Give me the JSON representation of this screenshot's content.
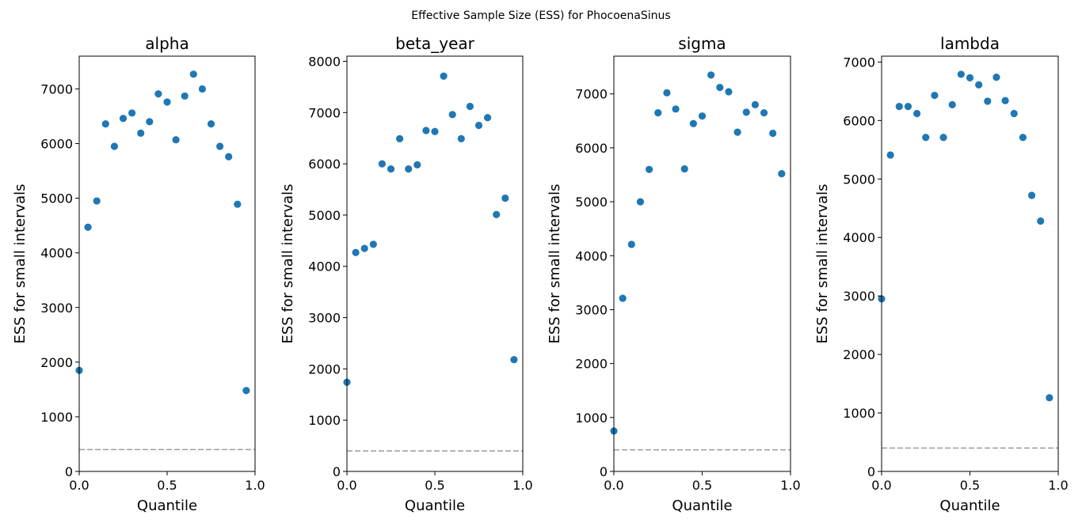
{
  "suptitle": "Effective Sample Size (ESS) for PhocoenaSinus",
  "chart_data": [
    {
      "type": "scatter",
      "title": "alpha",
      "xlabel": "Quantile",
      "ylabel": "ESS for small intervals",
      "xlim": [
        0,
        1
      ],
      "ylim": [
        0,
        7600
      ],
      "xticks": [
        "0.0",
        "0.5",
        "1.0"
      ],
      "yticks": [
        "0",
        "1000",
        "2000",
        "3000",
        "4000",
        "5000",
        "6000",
        "7000"
      ],
      "reference_line": 400,
      "color": "#1f77b4",
      "x": [
        0.0,
        0.05,
        0.1,
        0.15,
        0.2,
        0.25,
        0.3,
        0.35,
        0.4,
        0.45,
        0.5,
        0.55,
        0.6,
        0.65,
        0.7,
        0.75,
        0.8,
        0.85,
        0.9,
        0.95
      ],
      "y": [
        1850,
        4470,
        4950,
        6360,
        5950,
        6460,
        6560,
        6190,
        6400,
        6910,
        6760,
        6070,
        6870,
        7270,
        7000,
        6360,
        5950,
        5760,
        4890,
        1480
      ]
    },
    {
      "type": "scatter",
      "title": "beta_year",
      "xlabel": "Quantile",
      "ylabel": "ESS for small intervals",
      "xlim": [
        0,
        1
      ],
      "ylim": [
        0,
        8100
      ],
      "xticks": [
        "0.0",
        "0.5",
        "1.0"
      ],
      "yticks": [
        "0",
        "1000",
        "2000",
        "3000",
        "4000",
        "5000",
        "6000",
        "7000",
        "8000"
      ],
      "reference_line": 400,
      "color": "#1f77b4",
      "x": [
        0.0,
        0.05,
        0.1,
        0.15,
        0.2,
        0.25,
        0.3,
        0.35,
        0.4,
        0.45,
        0.5,
        0.55,
        0.6,
        0.65,
        0.7,
        0.75,
        0.8,
        0.85,
        0.9,
        0.95
      ],
      "y": [
        1740,
        4270,
        4350,
        4430,
        6000,
        5900,
        6490,
        5900,
        5980,
        6650,
        6630,
        7710,
        6960,
        6490,
        7120,
        6750,
        6900,
        5010,
        5330,
        2180
      ]
    },
    {
      "type": "scatter",
      "title": "sigma",
      "xlabel": "Quantile",
      "ylabel": "ESS for small intervals",
      "xlim": [
        0,
        1
      ],
      "ylim": [
        0,
        7700
      ],
      "xticks": [
        "0.0",
        "0.5",
        "1.0"
      ],
      "yticks": [
        "0",
        "1000",
        "2000",
        "3000",
        "4000",
        "5000",
        "6000",
        "7000"
      ],
      "reference_line": 400,
      "color": "#1f77b4",
      "x": [
        0.0,
        0.05,
        0.1,
        0.15,
        0.2,
        0.25,
        0.3,
        0.35,
        0.4,
        0.45,
        0.5,
        0.55,
        0.6,
        0.65,
        0.7,
        0.75,
        0.8,
        0.85,
        0.9,
        0.95
      ],
      "y": [
        750,
        3210,
        4210,
        5000,
        5600,
        6650,
        7020,
        6720,
        5610,
        6450,
        6590,
        7350,
        7120,
        7040,
        6290,
        6660,
        6800,
        6650,
        6270,
        5520
      ]
    },
    {
      "type": "scatter",
      "title": "lambda",
      "xlabel": "Quantile",
      "ylabel": "ESS for small intervals",
      "xlim": [
        0,
        1
      ],
      "ylim": [
        0,
        7100
      ],
      "xticks": [
        "0.0",
        "0.5",
        "1.0"
      ],
      "yticks": [
        "0",
        "1000",
        "2000",
        "3000",
        "4000",
        "5000",
        "6000",
        "7000"
      ],
      "reference_line": 400,
      "color": "#1f77b4",
      "x": [
        0.0,
        0.05,
        0.1,
        0.15,
        0.2,
        0.25,
        0.3,
        0.35,
        0.4,
        0.45,
        0.5,
        0.55,
        0.6,
        0.65,
        0.7,
        0.75,
        0.8,
        0.85,
        0.9,
        0.95
      ],
      "y": [
        2950,
        5410,
        6240,
        6240,
        6120,
        5710,
        6430,
        5710,
        6270,
        6790,
        6730,
        6610,
        6330,
        6740,
        6340,
        6120,
        5710,
        4720,
        4280,
        1260
      ]
    }
  ]
}
